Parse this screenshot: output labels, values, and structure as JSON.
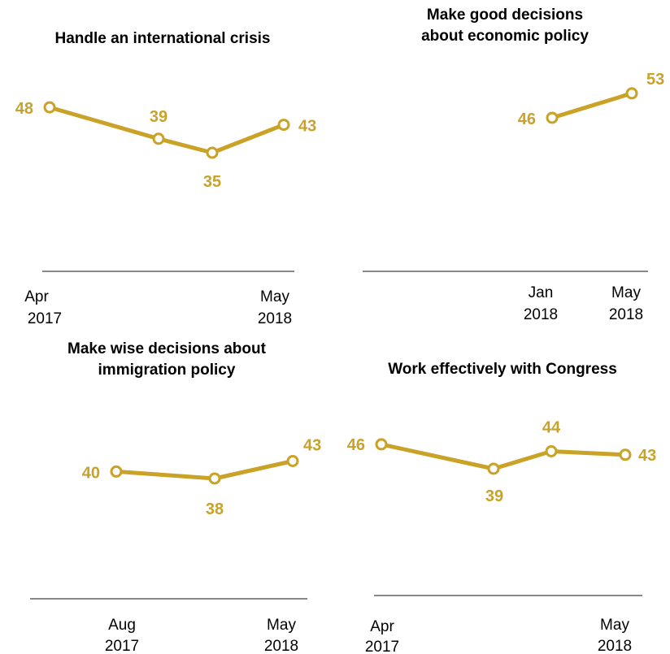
{
  "style": {
    "line_color": "#C9A227",
    "axis_color": "#888888",
    "marker_fill": "#ffffff"
  },
  "chart_data": [
    {
      "type": "line",
      "title": [
        "Handle an international crisis"
      ],
      "x": [
        "Apr 2017",
        "",
        "",
        "May 2018"
      ],
      "tick_labels": [
        [
          "Apr",
          "2017"
        ],
        [
          "May",
          "2018"
        ]
      ],
      "series": [
        {
          "values": [
            48,
            39,
            35,
            43
          ]
        }
      ]
    },
    {
      "type": "line",
      "title": [
        "Make good decisions",
        "about economic policy"
      ],
      "x": [
        "Jan 2018",
        "May 2018"
      ],
      "tick_labels": [
        [
          "Jan",
          "2018"
        ],
        [
          "May",
          "2018"
        ]
      ],
      "series": [
        {
          "values": [
            46,
            53
          ]
        }
      ]
    },
    {
      "type": "line",
      "title": [
        "Make wise decisions about",
        "immigration policy"
      ],
      "x": [
        "Aug 2017",
        "",
        "May 2018"
      ],
      "tick_labels": [
        [
          "Aug",
          "2017"
        ],
        [
          "May",
          "2018"
        ]
      ],
      "series": [
        {
          "values": [
            40,
            38,
            43
          ]
        }
      ]
    },
    {
      "type": "line",
      "title": [
        "Work effectively with Congress"
      ],
      "x": [
        "Apr 2017",
        "",
        "",
        "May 2018"
      ],
      "tick_labels": [
        [
          "Apr",
          "2017"
        ],
        [
          "May",
          "2018"
        ]
      ],
      "series": [
        {
          "values": [
            46,
            39,
            44,
            43
          ]
        }
      ]
    }
  ]
}
